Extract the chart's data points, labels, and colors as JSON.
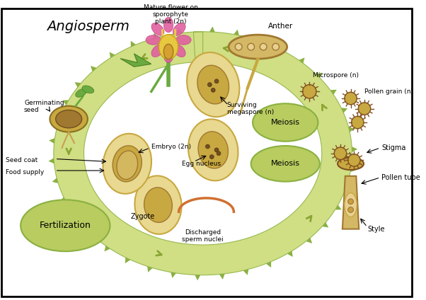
{
  "title": "Angiosperm",
  "bg_color": "#ffffff",
  "border_color": "#000000",
  "light_green": "#c8d96f",
  "med_green": "#b5cc5a",
  "dark_green": "#8aa632",
  "tan": "#d4b866",
  "dark_tan": "#a07830",
  "brown": "#7a5c28",
  "oval_green": "#c8d970",
  "arrow_green": "#8ab040",
  "pink": "#e060a0",
  "stem_green": "#6aaa40",
  "fertilization_green": "#b8cc60",
  "labels": {
    "title": "Angiosperm",
    "mature_flower": "Mature flower on\nsporophyte\nplant (2n)",
    "anther": "Anther",
    "microspore": "Microspore (n)",
    "pollen_grain": "Pollen grain (n)",
    "meiosis_top": "Meiosis",
    "meiosis_mid": "Meiosis",
    "stigma": "Stigma",
    "pollen_tube": "Pollen tube",
    "style": "Style",
    "discharged": "Discharged\nsperm nuclei",
    "egg_nucleus": "Egg nucleus",
    "zygote": "Zygote",
    "fertilization": "Fertilization",
    "food_supply": "Food supply",
    "seed_coat": "Seed coat",
    "embryo": "Embryo (2n)",
    "germinating": "Germinating\nseed",
    "surviving": "Surviving\nmegaspore (n)"
  }
}
